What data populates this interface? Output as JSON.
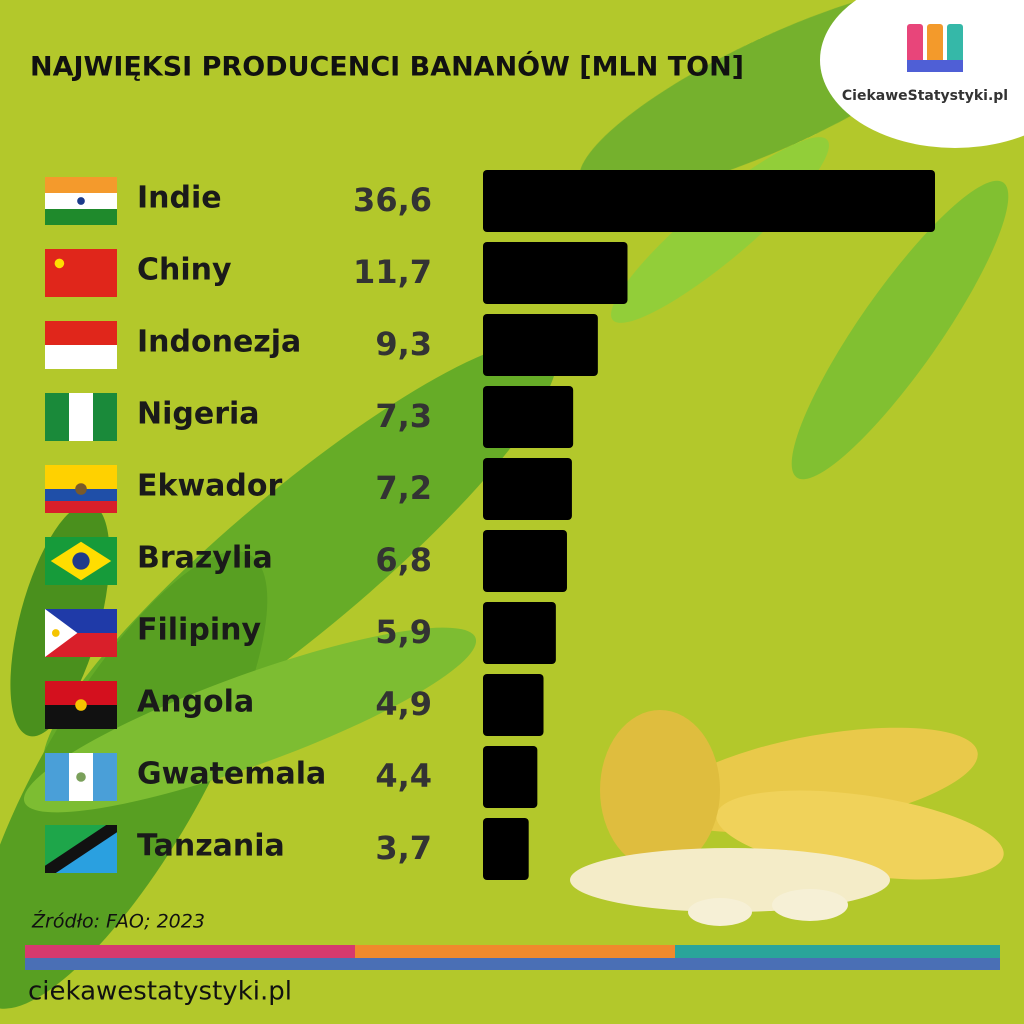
{
  "chart_data": {
    "type": "hbar",
    "title": "NAJWIĘKSI PRODUCENCI BANANÓW [MLN TON]",
    "categories": [
      "Indie",
      "Chiny",
      "Indonezja",
      "Nigeria",
      "Ekwador",
      "Brazylia",
      "Filipiny",
      "Angola",
      "Gwatemala",
      "Tanzania"
    ],
    "values": [
      36.6,
      11.7,
      9.3,
      7.3,
      7.2,
      6.8,
      5.9,
      4.9,
      4.4,
      3.7
    ],
    "value_labels": [
      "36,6",
      "11,7",
      "9,3",
      "7,3",
      "7,2",
      "6,8",
      "5,9",
      "4,9",
      "4,4",
      "3,7"
    ],
    "color": "#000000",
    "source": "Źródło: FAO; 2023",
    "footer": "ciekawestatystyki.pl",
    "logo": "CiekaweStatystyki.pl"
  }
}
